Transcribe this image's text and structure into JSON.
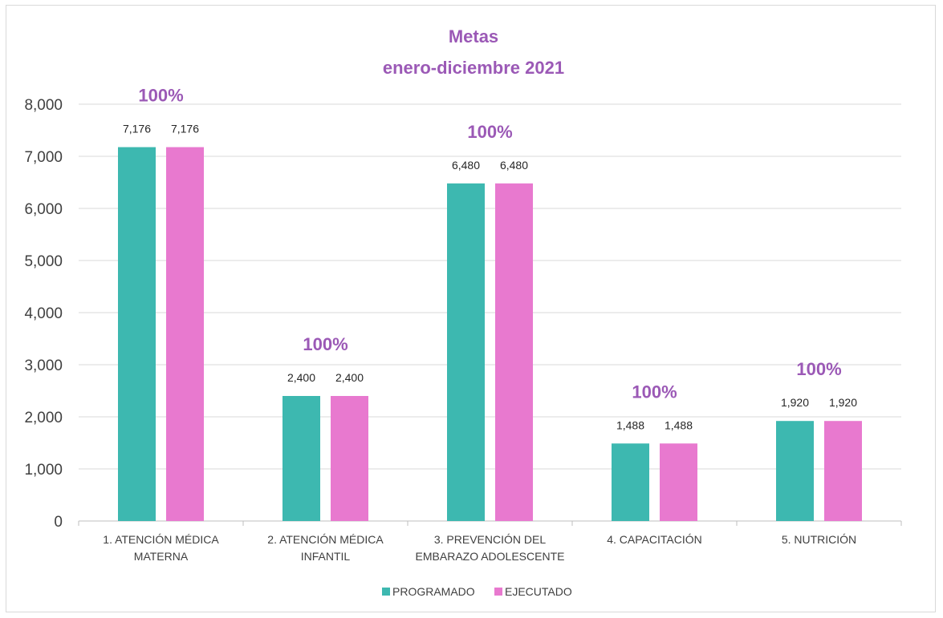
{
  "chart_data": {
    "type": "bar",
    "title": "Metas",
    "subtitle": "enero-diciembre 2021",
    "categories": [
      [
        "1. ATENCIÓN MÉDICA",
        "MATERNA"
      ],
      [
        "2. ATENCIÓN MÉDICA",
        "INFANTIL"
      ],
      [
        "3. PREVENCIÓN DEL",
        "EMBARAZO ADOLESCENTE"
      ],
      [
        "4. CAPACITACIÓN"
      ],
      [
        "5. NUTRICIÓN"
      ]
    ],
    "series": [
      {
        "name": "PROGRAMADO",
        "color": "#3db8b0",
        "values": [
          7176,
          2400,
          6480,
          1488,
          1920
        ]
      },
      {
        "name": "EJECUTADO",
        "color": "#e879cf",
        "values": [
          7176,
          2400,
          6480,
          1488,
          1920
        ]
      }
    ],
    "data_labels": [
      [
        "7,176",
        "2,400",
        "6,480",
        "1,488",
        "1,920"
      ],
      [
        "7,176",
        "2,400",
        "6,480",
        "1,488",
        "1,920"
      ]
    ],
    "annotations": [
      "100%",
      "100%",
      "100%",
      "100%",
      "100%"
    ],
    "annotation_color": "#9b59b6",
    "ylim": [
      0,
      8000
    ],
    "yticks": [
      0,
      1000,
      2000,
      3000,
      4000,
      5000,
      6000,
      7000,
      8000
    ],
    "ytick_labels": [
      "0",
      "1,000",
      "2,000",
      "3,000",
      "4,000",
      "5,000",
      "6,000",
      "7,000",
      "8,000"
    ],
    "grid": true,
    "legend_position": "bottom"
  }
}
